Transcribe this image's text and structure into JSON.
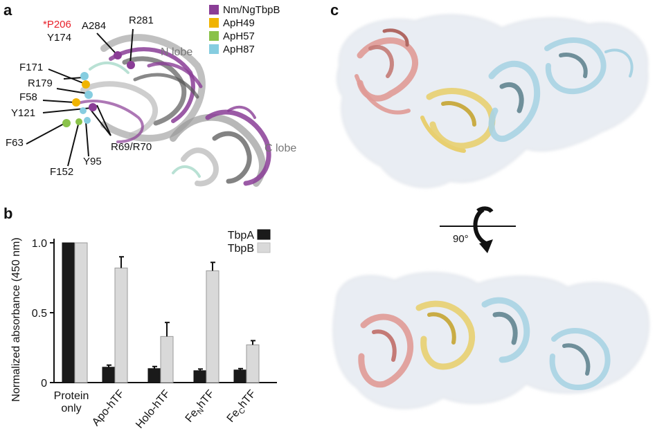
{
  "panels": {
    "a": "a",
    "b": "b",
    "c": "c"
  },
  "panel_a": {
    "legend": [
      {
        "label": "Nm/NgTbpB",
        "color": "#8a3d96"
      },
      {
        "label": "ApH49",
        "color": "#f0b400"
      },
      {
        "label": "ApH57",
        "color": "#8ac24a"
      },
      {
        "label": "ApH87",
        "color": "#86cde0"
      }
    ],
    "lobes": {
      "n": "N lobe",
      "c": "C lobe"
    },
    "residues": {
      "p206": "*P206",
      "a284": "A284",
      "r281": "R281",
      "y174": "Y174",
      "f171": "F171",
      "r179": "R179",
      "f58": "F58",
      "y121": "Y121",
      "f63": "F63",
      "f152": "F152",
      "y95": "Y95",
      "r69r70": "R69/R70"
    },
    "colors": {
      "highlight": "#e8202a"
    }
  },
  "chart_data": {
    "type": "bar",
    "ylabel": "Normalized absorbance (450 nm)",
    "ylim": [
      0,
      1.0
    ],
    "yticks": [
      "0",
      "0.5",
      "1.0"
    ],
    "categories": [
      "Protein only",
      "Apo-hTF",
      "Holo-hTF",
      "FeNhTF",
      "FeChTF"
    ],
    "series": [
      {
        "name": "TbpA",
        "color": "#1a1a1a",
        "values": [
          1.0,
          0.11,
          0.1,
          0.085,
          0.09
        ],
        "errors": [
          0,
          0.015,
          0.015,
          0.012,
          0.01
        ]
      },
      {
        "name": "TbpB",
        "color": "#d9d9d9",
        "values": [
          1.0,
          0.82,
          0.33,
          0.8,
          0.27
        ],
        "errors": [
          0,
          0.08,
          0.1,
          0.06,
          0.03
        ]
      }
    ],
    "legend_position": "top-right"
  },
  "panel_c": {
    "rotation_label": "90°",
    "domain_colors": {
      "tbpb_n": "#e09a96",
      "central": "#e8cf70",
      "c_lobe": "#a9d3e3",
      "envelope": "#e9edf3"
    }
  }
}
